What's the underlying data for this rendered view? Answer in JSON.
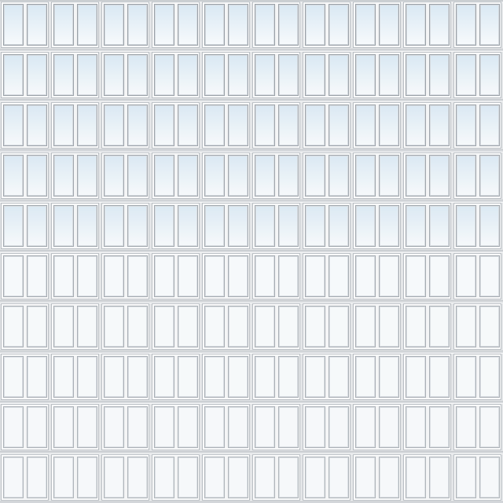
{
  "facade": {
    "columns": 10,
    "rows": 10,
    "panes_per_unit": 2,
    "colors": {
      "frame": "#f4f5f6",
      "frame_edge": "#b9bec3",
      "pane_edge": "#9aa1a8",
      "glass_top": "#d9e8f3",
      "glass_bottom": "#f7fafc",
      "spandrel": "#d9dcdf"
    }
  }
}
